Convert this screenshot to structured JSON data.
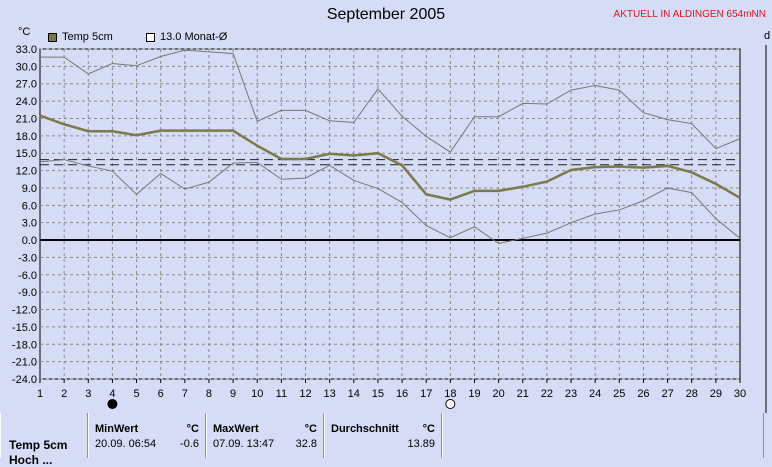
{
  "title": "September 2005",
  "station": "AKTUELL IN ALDINGEN 654mNN",
  "y_unit": "°C",
  "right_unit": "d",
  "legend": [
    {
      "label": "Temp 5cm",
      "color": "#7a7a4a"
    },
    {
      "label": "13.0 Monat-Ø",
      "color": "#ffffff"
    }
  ],
  "chart_data": {
    "type": "line",
    "title": "September 2005",
    "ylabel": "°C",
    "x": [
      1,
      2,
      3,
      4,
      5,
      6,
      7,
      8,
      9,
      10,
      11,
      12,
      13,
      14,
      15,
      16,
      17,
      18,
      19,
      20,
      21,
      22,
      23,
      24,
      25,
      26,
      27,
      28,
      29,
      30
    ],
    "ylim": [
      -24.0,
      33.0
    ],
    "yticks": [
      33.0,
      30.0,
      27.0,
      24.0,
      21.0,
      18.0,
      15.0,
      12.0,
      9.0,
      6.0,
      3.0,
      0.0,
      -3.0,
      -6.0,
      -9.0,
      -12.0,
      -15.0,
      -18.0,
      -21.0,
      -24.0
    ],
    "grid": true,
    "series": [
      {
        "name": "Temp 5cm",
        "role": "mean",
        "color": "#7a7a4a",
        "values": [
          21.5,
          20.0,
          18.8,
          18.8,
          18.1,
          18.9,
          18.9,
          18.9,
          18.9,
          16.3,
          14.0,
          14.0,
          14.9,
          14.6,
          15.0,
          12.9,
          7.9,
          7.0,
          8.5,
          8.5,
          9.2,
          10.1,
          12.1,
          12.6,
          12.7,
          12.5,
          12.8,
          11.7,
          9.7,
          7.3
        ]
      },
      {
        "role": "max",
        "color": "#777777",
        "values": [
          31.6,
          31.6,
          28.7,
          30.5,
          30.1,
          31.7,
          32.8,
          32.5,
          32.2,
          20.5,
          22.4,
          22.4,
          20.6,
          20.3,
          26.1,
          21.4,
          17.9,
          15.2,
          21.3,
          21.3,
          23.6,
          23.5,
          25.9,
          26.7,
          25.9,
          22.0,
          20.8,
          20.1,
          15.8,
          17.5
        ]
      },
      {
        "role": "min",
        "color": "#777777",
        "values": [
          13.5,
          13.9,
          12.8,
          11.9,
          7.9,
          11.5,
          8.8,
          10.0,
          13.3,
          13.4,
          10.5,
          10.7,
          12.9,
          10.3,
          8.9,
          6.5,
          2.5,
          0.4,
          2.3,
          -0.6,
          0.3,
          1.2,
          3.0,
          4.5,
          5.2,
          6.8,
          9.0,
          8.2,
          3.7,
          0.3
        ]
      }
    ],
    "reference_lines": [
      {
        "label": "13.0 Monat-Ø",
        "value": 13.0
      },
      {
        "value": 13.89
      }
    ],
    "markers": [
      {
        "x": 4,
        "type": "new-moon"
      },
      {
        "x": 18,
        "type": "full-moon"
      }
    ]
  },
  "stats": {
    "row_label": "Temp 5cm",
    "row_label2": "Hoch ...",
    "min": {
      "header": "MinWert",
      "unit": "°C",
      "datetime": "20.09.  06:54",
      "value": "-0.6"
    },
    "max": {
      "header": "MaxWert",
      "unit": "°C",
      "datetime": "07.09.  13:47",
      "value": "32.8"
    },
    "avg": {
      "header": "Durchschnitt",
      "unit": "°C",
      "value": "13.89"
    }
  }
}
